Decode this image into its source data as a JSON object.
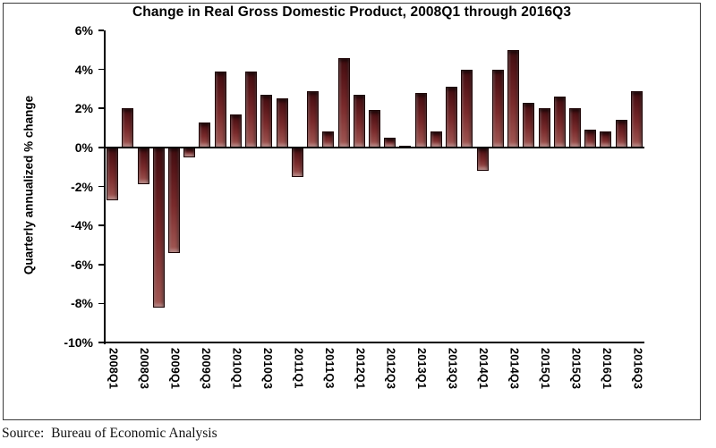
{
  "figure": {
    "source_label": "Source:  Bureau of Economic Analysis"
  },
  "chart_data": {
    "type": "bar",
    "title": "Change in Real Gross Domestic Product, 2008Q1 through 2016Q3",
    "xlabel": "",
    "ylabel": "Quarterly annualized % change",
    "ylim": [
      -10,
      6
    ],
    "y_ticks": [
      6,
      4,
      2,
      0,
      -2,
      -4,
      -6,
      -8,
      -10
    ],
    "y_tick_labels": [
      "6%",
      "4%",
      "2%",
      "0%",
      "-2%",
      "-4%",
      "-6%",
      "-8%",
      "-10%"
    ],
    "x_tick_every": 2,
    "grid": "off",
    "legend": "none",
    "categories": [
      "2008Q1",
      "2008Q2",
      "2008Q3",
      "2008Q4",
      "2009Q1",
      "2009Q2",
      "2009Q3",
      "2009Q4",
      "2010Q1",
      "2010Q2",
      "2010Q3",
      "2010Q4",
      "2011Q1",
      "2011Q2",
      "2011Q3",
      "2011Q4",
      "2012Q1",
      "2012Q2",
      "2012Q3",
      "2012Q4",
      "2013Q1",
      "2013Q2",
      "2013Q3",
      "2013Q4",
      "2014Q1",
      "2014Q2",
      "2014Q3",
      "2014Q4",
      "2015Q1",
      "2015Q2",
      "2015Q3",
      "2015Q4",
      "2016Q1",
      "2016Q2",
      "2016Q3"
    ],
    "values": [
      -2.7,
      2.0,
      -1.9,
      -8.2,
      -5.4,
      -0.5,
      1.3,
      3.9,
      1.7,
      3.9,
      2.7,
      2.5,
      -1.5,
      2.9,
      0.8,
      4.6,
      2.7,
      1.9,
      0.5,
      0.1,
      2.8,
      0.8,
      3.1,
      4.0,
      -1.2,
      4.0,
      5.0,
      2.3,
      2.0,
      2.6,
      2.0,
      0.9,
      0.8,
      1.4,
      2.9
    ],
    "colors": {
      "bar_outline": "#1e0506",
      "bar_dark": "#3f0d10",
      "bar_mid": "#7a2b2c",
      "bar_light": "#a35955",
      "axis": "#000000",
      "frame": "#3a3a3a",
      "background": "#ffffff",
      "text": "#000000"
    }
  }
}
